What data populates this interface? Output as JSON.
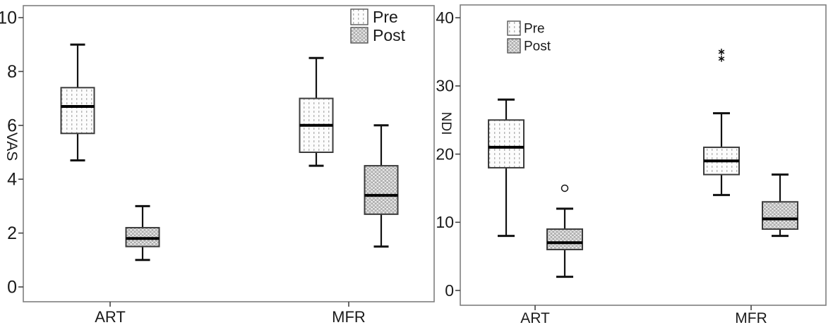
{
  "figure": {
    "background": "#ffffff",
    "description": "Two clustered box plots comparing Pre and Post values of VAS and NDI for ART and MFR groups"
  },
  "style": {
    "frame": "#7f7f7f",
    "line": "#111111",
    "median": "#000000",
    "box_stroke": "#3c3c3c",
    "text": "#1a1a1a",
    "pre_base": "#fcfcfc",
    "pre_mark": "#b5b5b5",
    "post_base": "#e7e7e7",
    "post_mark": "#8f8f8f"
  },
  "chart_data": [
    {
      "type": "boxplot",
      "title": "",
      "xlabel": "",
      "ylabel": "VAS",
      "categories": [
        "ART",
        "MFR"
      ],
      "legend": [
        "Pre",
        "Post"
      ],
      "legend_position": "top-right-inside",
      "ylim": [
        0,
        10.5
      ],
      "yticks": [
        0,
        2,
        4,
        6,
        8,
        10
      ],
      "grid": false,
      "series": [
        {
          "group": "ART",
          "name": "Pre",
          "whisker_low": 4.7,
          "q1": 5.7,
          "median": 6.7,
          "q3": 7.4,
          "whisker_high": 9.0,
          "outliers": []
        },
        {
          "group": "ART",
          "name": "Post",
          "whisker_low": 1.0,
          "q1": 1.5,
          "median": 1.8,
          "q3": 2.2,
          "whisker_high": 3.0,
          "outliers": []
        },
        {
          "group": "MFR",
          "name": "Pre",
          "whisker_low": 4.5,
          "q1": 5.0,
          "median": 6.0,
          "q3": 7.0,
          "whisker_high": 8.5,
          "outliers": []
        },
        {
          "group": "MFR",
          "name": "Post",
          "whisker_low": 1.5,
          "q1": 2.7,
          "median": 3.4,
          "q3": 4.5,
          "whisker_high": 6.0,
          "outliers": []
        }
      ]
    },
    {
      "type": "boxplot",
      "title": "",
      "xlabel": "",
      "ylabel": "NDI",
      "categories": [
        "ART",
        "MFR"
      ],
      "legend": [
        "Pre",
        "Post"
      ],
      "legend_position": "top-left-inside",
      "ylim": [
        0,
        42
      ],
      "yticks": [
        0,
        10,
        20,
        30,
        40
      ],
      "grid": false,
      "series": [
        {
          "group": "ART",
          "name": "Pre",
          "whisker_low": 8,
          "q1": 18,
          "median": 21,
          "q3": 25,
          "whisker_high": 28,
          "outliers": []
        },
        {
          "group": "ART",
          "name": "Post",
          "whisker_low": 2,
          "q1": 6,
          "median": 7,
          "q3": 9,
          "whisker_high": 12,
          "outliers": [
            {
              "value": 15,
              "type": "circle"
            }
          ]
        },
        {
          "group": "MFR",
          "name": "Pre",
          "whisker_low": 14,
          "q1": 17,
          "median": 19,
          "q3": 21,
          "whisker_high": 26,
          "outliers": [
            {
              "value": 34,
              "type": "asterisk"
            },
            {
              "value": 35,
              "type": "asterisk"
            }
          ]
        },
        {
          "group": "MFR",
          "name": "Post",
          "whisker_low": 8,
          "q1": 9,
          "median": 10.5,
          "q3": 13,
          "whisker_high": 17,
          "outliers": []
        }
      ]
    }
  ]
}
